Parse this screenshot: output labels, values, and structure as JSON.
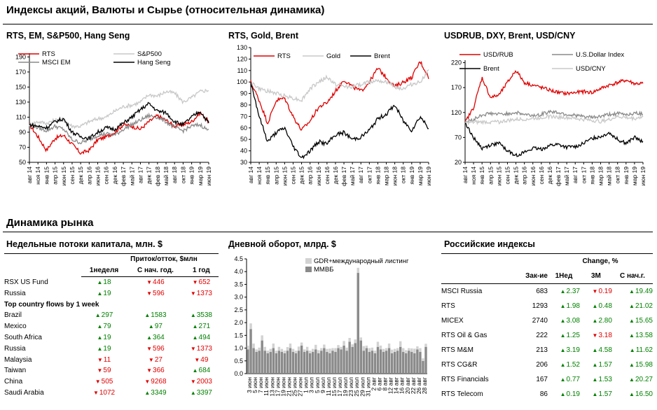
{
  "page_title": "Индексы акций, Валюты и  Сырье (относительная динамика)",
  "market_title": "Динамика рынка",
  "colors": {
    "red": "#e00000",
    "black": "#000000",
    "gray": "#8a8a8a",
    "lightgray": "#c8c8c8",
    "green": "#008000"
  },
  "chart_data": [
    {
      "type": "line",
      "title": "RTS, EM, S&P500, Hang Seng",
      "yticks": [
        50,
        70,
        90,
        110,
        130,
        150,
        170,
        190
      ],
      "ylim": [
        50,
        195
      ],
      "xticks": [
        "авг 14",
        "ноя 14",
        "янв 15",
        "апр 15",
        "июн 15",
        "сен 15",
        "дек 15",
        "апр 16",
        "июн 16",
        "сен 16",
        "дек 16",
        "фев 17",
        "май 17",
        "авг 17",
        "дек 17",
        "фев 18",
        "май 18",
        "авг 18",
        "окт 18",
        "янв 19",
        "мар 19",
        "июн 19"
      ],
      "series": [
        {
          "name": "RTS",
          "color": "#e00000",
          "values": [
            100,
            84,
            66,
            82,
            86,
            74,
            62,
            66,
            80,
            84,
            90,
            100,
            98,
            94,
            104,
            112,
            106,
            98,
            100,
            104,
            116,
            104
          ]
        },
        {
          "name": "S&P500",
          "color": "#c8c8c8",
          "values": [
            100,
            104,
            102,
            106,
            106,
            98,
            98,
            104,
            108,
            110,
            118,
            124,
            126,
            130,
            140,
            138,
            144,
            142,
            130,
            136,
            144,
            146
          ]
        },
        {
          "name": "MSCI EM",
          "color": "#8a8a8a",
          "values": [
            100,
            96,
            92,
            98,
            94,
            80,
            76,
            80,
            86,
            88,
            86,
            94,
            100,
            106,
            112,
            110,
            104,
            96,
            92,
            98,
            100,
            92
          ]
        },
        {
          "name": "Hang Seng",
          "color": "#000000",
          "values": [
            100,
            98,
            96,
            104,
            108,
            90,
            84,
            82,
            90,
            96,
            94,
            102,
            110,
            120,
            128,
            118,
            116,
            104,
            100,
            110,
            118,
            102
          ]
        }
      ],
      "legend": "top"
    },
    {
      "type": "line",
      "title": "RTS, Gold, Brent",
      "yticks": [
        30,
        40,
        50,
        60,
        70,
        80,
        90,
        100,
        110,
        120,
        130
      ],
      "ylim": [
        30,
        130
      ],
      "xticks": [
        "авг 14",
        "ноя 14",
        "янв 15",
        "апр 15",
        "июн 15",
        "сен 15",
        "дек 15",
        "апр 16",
        "июн 16",
        "сен 16",
        "дек 16",
        "фев 17",
        "май 17",
        "авг 17",
        "окт 17",
        "янв 18",
        "мар 18",
        "июн 18",
        "окт 18",
        "янв 19",
        "мар 19",
        "июн 19"
      ],
      "series": [
        {
          "name": "RTS",
          "color": "#e00000",
          "values": [
            100,
            84,
            64,
            84,
            86,
            70,
            58,
            66,
            78,
            82,
            92,
            102,
            96,
            92,
            100,
            112,
            104,
            96,
            100,
            104,
            118,
            104
          ]
        },
        {
          "name": "Gold",
          "color": "#c8c8c8",
          "values": [
            100,
            94,
            92,
            90,
            88,
            86,
            84,
            94,
            100,
            104,
            98,
            96,
            96,
            98,
            100,
            102,
            100,
            96,
            94,
            98,
            100,
            110
          ]
        },
        {
          "name": "Brent",
          "color": "#000000",
          "values": [
            100,
            70,
            48,
            56,
            60,
            44,
            34,
            40,
            48,
            46,
            54,
            56,
            50,
            52,
            58,
            68,
            72,
            80,
            66,
            58,
            70,
            60
          ]
        }
      ],
      "legend": "top"
    },
    {
      "type": "line",
      "title": "USDRUB, DXY, Brent, USD/CNY",
      "yticks": [
        20,
        70,
        120,
        170,
        220
      ],
      "ylim": [
        20,
        225
      ],
      "xticks": [
        "авг 14",
        "ноя 14",
        "янв 15",
        "апр 15",
        "июн 15",
        "сен 15",
        "дек 15",
        "апр 16",
        "июн 16",
        "сен 16",
        "дек 16",
        "фев 17",
        "май 17",
        "авг 17",
        "окт 17",
        "янв 18",
        "мар 18",
        "май 18",
        "окт 18",
        "янв 19",
        "мар 19",
        "июн 19"
      ],
      "series": [
        {
          "name": "USD/RUB",
          "color": "#e00000",
          "values": [
            100,
            130,
            190,
            150,
            155,
            180,
            205,
            180,
            175,
            170,
            165,
            160,
            158,
            160,
            162,
            160,
            168,
            175,
            180,
            185,
            178,
            178
          ]
        },
        {
          "name": "U.S.Dollar Index",
          "color": "#8a8a8a",
          "values": [
            100,
            106,
            115,
            118,
            116,
            118,
            120,
            116,
            114,
            116,
            122,
            120,
            116,
            114,
            112,
            110,
            112,
            116,
            118,
            116,
            118,
            118
          ]
        },
        {
          "name": "Brent",
          "color": "#000000",
          "values": [
            100,
            70,
            48,
            55,
            58,
            44,
            34,
            40,
            48,
            46,
            54,
            56,
            50,
            52,
            58,
            68,
            72,
            80,
            66,
            58,
            70,
            60
          ]
        },
        {
          "name": "USD/CNY",
          "color": "#c8c8c8",
          "values": [
            100,
            100,
            101,
            101,
            101,
            104,
            106,
            107,
            108,
            110,
            112,
            111,
            110,
            108,
            106,
            104,
            102,
            106,
            112,
            110,
            108,
            112
          ]
        }
      ],
      "legend": "top"
    },
    {
      "type": "bar",
      "title": "Дневной оборот, млрд. $",
      "yticks": [
        "0.0",
        "0.5",
        "1.0",
        "1.5",
        "2.0",
        "2.5",
        "3.0",
        "3.5",
        "4.0",
        "4.5"
      ],
      "ylim": [
        0,
        4.5
      ],
      "xticks": [
        "3 июн",
        "5 июн",
        "7 июн",
        "11 июн",
        "13 июн",
        "17 июн",
        "19 июн",
        "21 июн",
        "25 июн",
        "27 июн",
        "1 июл",
        "3 июл",
        "5 июл",
        "9 июл",
        "11 июл",
        "15 июл",
        "17 июл",
        "19 июл",
        "23 июл",
        "25 июл",
        "29 июл",
        "31 июл",
        "2 авг",
        "6 авг",
        "8 авг",
        "12 авг",
        "14 авг",
        "16 авг",
        "20 авг",
        "22 авг",
        "26 авг",
        "28 авг"
      ],
      "series": [
        {
          "name": "GDR+международный  листинг",
          "color": "#d2d2d2",
          "values": [
            0.15,
            0.22,
            0.18,
            0.1,
            0.12,
            0.2,
            0.15,
            0.1,
            0.12,
            0.18,
            0.1,
            0.15,
            0.12,
            0.1,
            0.14,
            0.18,
            0.12,
            0.1,
            0.16,
            0.12,
            0.1,
            0.15,
            0.1,
            0.12,
            0.18,
            0.12,
            0.1,
            0.14,
            0.12,
            0.18,
            0.1,
            0.15,
            0.12,
            0.1,
            0.18,
            0.12,
            0.15,
            0.1,
            0.14,
            0.2,
            0.12,
            0.18,
            0.1,
            0.15,
            0.12,
            0.1,
            0.2,
            0.15,
            0.12,
            0.1,
            0.18,
            0.14,
            0.12,
            0.1,
            0.22,
            0.15,
            0.12,
            0.1,
            0.14,
            0.18,
            0.12,
            0.15,
            0.1,
            0.12
          ]
        },
        {
          "name": "ММВБ",
          "color": "#8a8a8a",
          "values": [
            0.95,
            1.75,
            1.0,
            0.85,
            0.9,
            1.3,
            0.9,
            0.8,
            0.85,
            1.0,
            0.8,
            0.9,
            0.85,
            0.8,
            0.9,
            1.0,
            0.85,
            0.8,
            0.9,
            1.1,
            0.85,
            0.9,
            0.8,
            0.85,
            0.95,
            0.8,
            0.9,
            1.0,
            0.85,
            0.8,
            0.9,
            0.85,
            1.0,
            0.95,
            1.1,
            0.9,
            1.25,
            1.05,
            1.2,
            3.95,
            1.3,
            0.9,
            1.0,
            0.85,
            0.9,
            0.8,
            1.05,
            0.95,
            0.85,
            0.9,
            1.0,
            0.8,
            0.85,
            0.9,
            1.05,
            0.85,
            0.8,
            0.9,
            0.85,
            0.8,
            0.95,
            0.85,
            0.5,
            1.05
          ]
        }
      ],
      "legend": "top"
    }
  ],
  "flows": {
    "title": "Недельные потоки капитала, млн. $",
    "group_header": "Приток/отток, $млн",
    "cols": [
      "1неделя",
      "С нач. год.",
      "1 год"
    ],
    "rows": [
      {
        "name": "RSX US Fund",
        "v": [
          [
            "up",
            "18"
          ],
          [
            "dn",
            "446"
          ],
          [
            "dn",
            "652"
          ]
        ]
      },
      {
        "name": "Russia",
        "v": [
          [
            "up",
            "19"
          ],
          [
            "dn",
            "596"
          ],
          [
            "dn",
            "1373"
          ]
        ]
      }
    ],
    "section": "Top country flows by 1 week",
    "rows2": [
      {
        "name": "Brazil",
        "v": [
          [
            "up",
            "297"
          ],
          [
            "up",
            "1583"
          ],
          [
            "up",
            "3538"
          ]
        ]
      },
      {
        "name": "Mexico",
        "v": [
          [
            "up",
            "79"
          ],
          [
            "up",
            "97"
          ],
          [
            "up",
            "271"
          ]
        ]
      },
      {
        "name": "South Africa",
        "v": [
          [
            "up",
            "19"
          ],
          [
            "up",
            "364"
          ],
          [
            "up",
            "494"
          ]
        ]
      },
      {
        "name": "Russia",
        "v": [
          [
            "up",
            "19"
          ],
          [
            "dn",
            "596"
          ],
          [
            "dn",
            "1373"
          ]
        ]
      },
      {
        "name": "Malaysia",
        "v": [
          [
            "dn",
            "11"
          ],
          [
            "dn",
            "27"
          ],
          [
            "dn",
            "49"
          ]
        ]
      },
      {
        "name": "Taiwan",
        "v": [
          [
            "dn",
            "59"
          ],
          [
            "dn",
            "366"
          ],
          [
            "up",
            "684"
          ]
        ]
      },
      {
        "name": "China",
        "v": [
          [
            "dn",
            "505"
          ],
          [
            "dn",
            "9268"
          ],
          [
            "dn",
            "2003"
          ]
        ]
      },
      {
        "name": "Saudi Arabia",
        "v": [
          [
            "dn",
            "1072"
          ],
          [
            "up",
            "3349"
          ],
          [
            "up",
            "3397"
          ]
        ]
      }
    ]
  },
  "indices": {
    "title": "Российские индексы",
    "change_header": "Change, %",
    "cols": [
      "Зак-ие",
      "1Нед",
      "3М",
      "С нач.г."
    ],
    "rows": [
      {
        "name": "MSCI Russia",
        "close": "683",
        "v": [
          [
            "up",
            "2.37"
          ],
          [
            "dn",
            "0.19"
          ],
          [
            "up",
            "19.49"
          ]
        ]
      },
      {
        "name": "RTS",
        "close": "1293",
        "v": [
          [
            "up",
            "1.98"
          ],
          [
            "up",
            "0.48"
          ],
          [
            "up",
            "21.02"
          ]
        ]
      },
      {
        "name": "MICEX",
        "close": "2740",
        "v": [
          [
            "up",
            "3.08"
          ],
          [
            "up",
            "2.80"
          ],
          [
            "up",
            "15.65"
          ]
        ]
      },
      {
        "name": "RTS Oil & Gas",
        "close": "222",
        "v": [
          [
            "up",
            "1.25"
          ],
          [
            "dn",
            "3.18"
          ],
          [
            "up",
            "13.58"
          ]
        ]
      },
      {
        "name": "RTS M&M",
        "close": "213",
        "v": [
          [
            "up",
            "3.19"
          ],
          [
            "up",
            "4.58"
          ],
          [
            "up",
            "11.62"
          ]
        ]
      },
      {
        "name": "RTS CG&R",
        "close": "206",
        "v": [
          [
            "up",
            "1.52"
          ],
          [
            "up",
            "1.57"
          ],
          [
            "up",
            "15.98"
          ]
        ]
      },
      {
        "name": "RTS Financials",
        "close": "167",
        "v": [
          [
            "up",
            "0.77"
          ],
          [
            "up",
            "1.53"
          ],
          [
            "up",
            "20.27"
          ]
        ]
      },
      {
        "name": "RTS Telecom",
        "close": "86",
        "v": [
          [
            "up",
            "0.19"
          ],
          [
            "up",
            "1.57"
          ],
          [
            "up",
            "16.50"
          ]
        ]
      }
    ]
  }
}
